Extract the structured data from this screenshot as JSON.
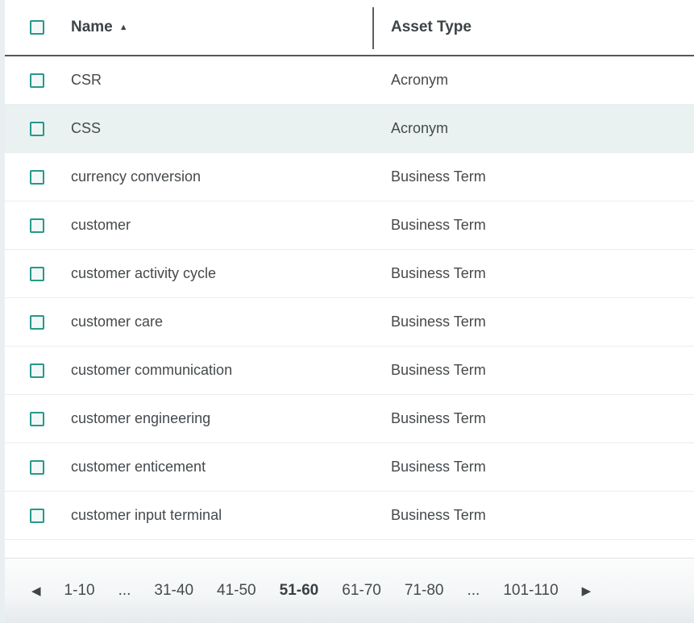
{
  "table": {
    "columns": {
      "name": {
        "label": "Name",
        "sort": "asc",
        "sort_icon": "▲"
      },
      "asset_type": {
        "label": "Asset Type"
      }
    },
    "rows": [
      {
        "name": "CSR",
        "asset_type": "Acronym",
        "highlighted": false
      },
      {
        "name": "CSS",
        "asset_type": "Acronym",
        "highlighted": true
      },
      {
        "name": "currency conversion",
        "asset_type": "Business Term",
        "highlighted": false
      },
      {
        "name": "customer",
        "asset_type": "Business Term",
        "highlighted": false
      },
      {
        "name": "customer activity cycle",
        "asset_type": "Business Term",
        "highlighted": false
      },
      {
        "name": "customer care",
        "asset_type": "Business Term",
        "highlighted": false
      },
      {
        "name": "customer communication",
        "asset_type": "Business Term",
        "highlighted": false
      },
      {
        "name": "customer engineering",
        "asset_type": "Business Term",
        "highlighted": false
      },
      {
        "name": "customer enticement",
        "asset_type": "Business Term",
        "highlighted": false
      },
      {
        "name": "customer input terminal",
        "asset_type": "Business Term",
        "highlighted": false
      }
    ]
  },
  "pagination": {
    "prev_icon": "◀",
    "next_icon": "▶",
    "pages": [
      {
        "label": "1-10",
        "current": false
      },
      {
        "label": "...",
        "current": false
      },
      {
        "label": "31-40",
        "current": false
      },
      {
        "label": "41-50",
        "current": false
      },
      {
        "label": "51-60",
        "current": true
      },
      {
        "label": "61-70",
        "current": false
      },
      {
        "label": "71-80",
        "current": false
      },
      {
        "label": "...",
        "current": false
      },
      {
        "label": "101-110",
        "current": false
      }
    ]
  },
  "colors": {
    "accent_teal": "#26998a",
    "highlight_row": "#e9f2f1",
    "header_border": "#53585b",
    "row_divider": "#e9edef",
    "text": "#45494c"
  }
}
